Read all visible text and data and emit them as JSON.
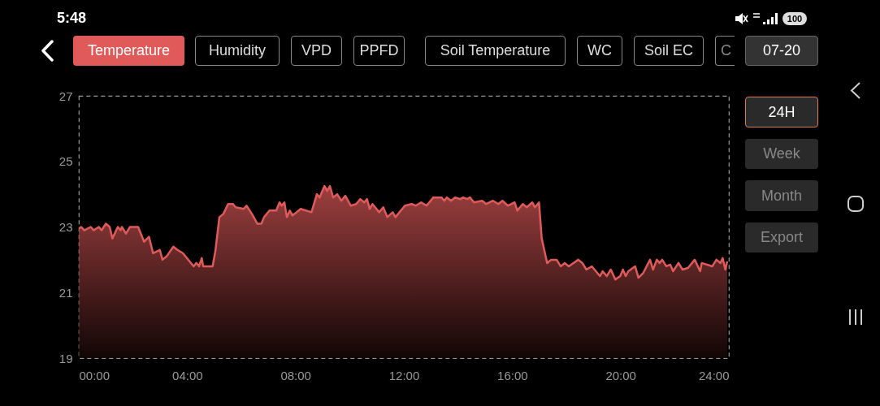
{
  "chart_data": {
    "type": "area",
    "color": "#e05a5a",
    "x": [
      0,
      0.09,
      0.2,
      0.44,
      0.55,
      0.74,
      0.84,
      1.0,
      1.14,
      1.24,
      1.44,
      1.54,
      1.59,
      1.74,
      1.89,
      2.19,
      2.41,
      2.59,
      2.74,
      2.99,
      3.09,
      3.24,
      3.49,
      3.64,
      3.84,
      4.24,
      4.34,
      4.44,
      4.54,
      4.59,
      4.94,
      5.04,
      5.19,
      5.34,
      5.51,
      5.69,
      5.79,
      6.09,
      6.19,
      6.39,
      6.59,
      6.74,
      6.84,
      7.04,
      7.29,
      7.41,
      7.49,
      7.59,
      7.68,
      7.79,
      7.89,
      8.19,
      8.59,
      8.79,
      8.89,
      9.07,
      9.17,
      9.27,
      9.39,
      9.54,
      9.69,
      9.84,
      10.04,
      10.24,
      10.39,
      10.54,
      10.64,
      10.74,
      10.84,
      11.09,
      11.24,
      11.39,
      11.59,
      11.69,
      11.89,
      12.04,
      12.29,
      12.44,
      12.64,
      12.84,
      13.09,
      13.39,
      13.49,
      13.59,
      13.74,
      13.89,
      14.09,
      14.19,
      14.34,
      14.44,
      14.59,
      14.89,
      15.04,
      15.29,
      15.49,
      15.64,
      15.84,
      16.09,
      16.19,
      16.39,
      16.54,
      16.74,
      16.84,
      16.99,
      17.09,
      17.29,
      17.44,
      17.64,
      17.79,
      17.94,
      18.09,
      18.44,
      18.59,
      18.74,
      18.94,
      19.24,
      19.34,
      19.49,
      19.64,
      19.81,
      19.99,
      20.09,
      20.19,
      20.29,
      20.54,
      20.66,
      20.84,
      21.09,
      21.2,
      21.34,
      21.44,
      21.54,
      21.69,
      21.84,
      21.94,
      22.14,
      22.29,
      22.49,
      22.74,
      22.94,
      23.0,
      23.39,
      23.54,
      23.69,
      23.77,
      23.87,
      23.94
    ],
    "values": [
      22.95,
      23.0,
      22.9,
      23.0,
      22.9,
      23.0,
      22.9,
      23.1,
      23.0,
      22.65,
      23.0,
      22.9,
      23.0,
      22.8,
      23.0,
      23.0,
      22.55,
      22.7,
      22.2,
      22.3,
      22.0,
      22.1,
      22.4,
      22.3,
      22.2,
      21.8,
      21.9,
      21.8,
      22.05,
      21.8,
      21.8,
      22.25,
      23.3,
      23.4,
      23.7,
      23.7,
      23.6,
      23.55,
      23.65,
      23.4,
      23.1,
      23.1,
      23.3,
      23.5,
      23.5,
      23.75,
      23.65,
      23.75,
      23.3,
      23.5,
      23.35,
      23.55,
      23.45,
      24.0,
      23.9,
      24.25,
      24.1,
      24.25,
      23.9,
      24.0,
      23.8,
      23.95,
      23.65,
      23.7,
      23.85,
      23.75,
      23.85,
      23.55,
      23.7,
      23.45,
      23.6,
      23.3,
      23.45,
      23.3,
      23.5,
      23.65,
      23.7,
      23.65,
      23.75,
      23.65,
      23.9,
      23.9,
      23.8,
      23.9,
      23.8,
      23.9,
      23.85,
      23.9,
      23.85,
      23.9,
      23.75,
      23.8,
      23.7,
      23.8,
      23.7,
      23.8,
      23.65,
      23.75,
      23.5,
      23.7,
      23.6,
      23.75,
      23.6,
      23.75,
      22.65,
      21.9,
      22.0,
      22.0,
      21.8,
      21.9,
      21.8,
      22.0,
      21.9,
      21.7,
      21.8,
      21.5,
      21.65,
      21.5,
      21.7,
      21.4,
      21.5,
      21.7,
      21.5,
      21.65,
      21.8,
      21.45,
      21.6,
      22.0,
      21.7,
      22.0,
      21.9,
      22.0,
      21.8,
      21.85,
      21.65,
      21.9,
      21.7,
      21.75,
      22.0,
      21.65,
      21.9,
      21.8,
      22.0,
      21.9,
      22.05,
      21.7,
      21.95
    ],
    "xlim": [
      0,
      24
    ],
    "xticks": [
      {
        "value": 0,
        "label": "00:00"
      },
      {
        "value": 4,
        "label": "04:00"
      },
      {
        "value": 8,
        "label": "08:00"
      },
      {
        "value": 12,
        "label": "12:00"
      },
      {
        "value": 16,
        "label": "16:00"
      },
      {
        "value": 20,
        "label": "20:00"
      },
      {
        "value": 24,
        "label": "24:00"
      }
    ],
    "ylim": [
      19,
      27
    ],
    "yticks": [
      19,
      21,
      23,
      25,
      27
    ],
    "grid": false,
    "annotations": [
      "5:48",
      "100",
      "Temperature",
      "Humidity",
      "VPD",
      "PPFD",
      "Soil Temperature",
      "WC",
      "Soil EC",
      "C",
      "07-20",
      "24H",
      "Week",
      "Month",
      "Export"
    ]
  }
}
